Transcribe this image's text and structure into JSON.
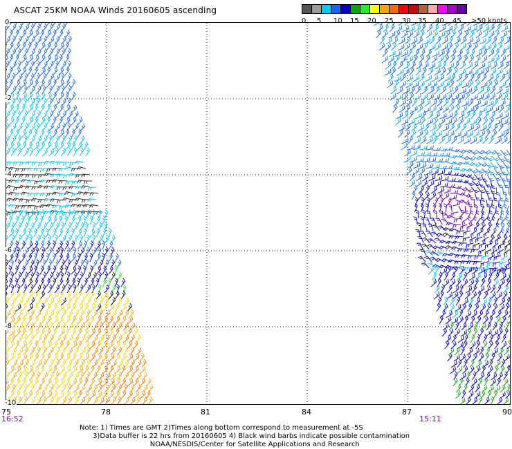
{
  "title": "ASCAT 25KM NOAA Winds 20160605 ascending",
  "scale": {
    "colors": [
      "#555555",
      "#9a9a9a",
      "#00ccff",
      "#1566ff",
      "#0000cc",
      "#00aa00",
      "#22ee22",
      "#ffff00",
      "#ffa500",
      "#ff6a00",
      "#ff0000",
      "#cc0000",
      "#aa6633",
      "#ffaaaa",
      "#ff00ff",
      "#aa00cc",
      "#6600aa"
    ],
    "labels": [
      "0",
      "5",
      "10",
      "15",
      "20",
      "25",
      "30",
      "35",
      "40",
      "45",
      ">50 knots"
    ]
  },
  "axes": {
    "y_labels": [
      "0",
      "-2",
      "-4",
      "-6",
      "-8",
      "-10"
    ],
    "x_labels": [
      "75",
      "78",
      "81",
      "84",
      "87",
      "90"
    ]
  },
  "times": {
    "left": "16:52",
    "right": "15:11"
  },
  "notes": [
    "Note: 1) Times are GMT 2)Times along bottom correspond to measurement at -5S",
    "      3)Data buffer is 22 hrs from 20160605 4) Black wind barbs indicate possible contamination",
    "                                NOAA/NESDIS/Center for Satellite Applications and Research"
  ]
}
